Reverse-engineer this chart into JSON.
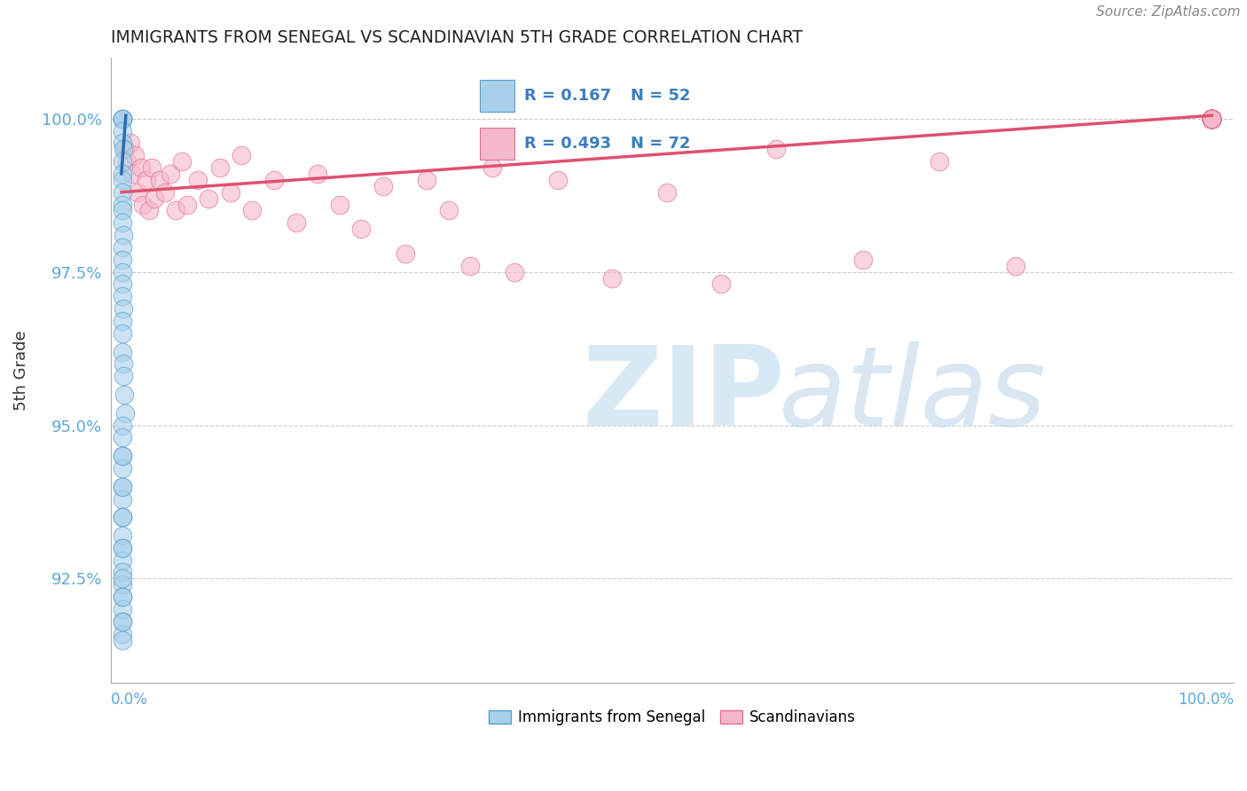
{
  "title": "IMMIGRANTS FROM SENEGAL VS SCANDINAVIAN 5TH GRADE CORRELATION CHART",
  "source": "Source: ZipAtlas.com",
  "ylabel": "5th Grade",
  "ylim": [
    90.8,
    101.0
  ],
  "xlim": [
    -1.0,
    102.0
  ],
  "yticks": [
    92.5,
    95.0,
    97.5,
    100.0
  ],
  "ytick_labels": [
    "92.5%",
    "95.0%",
    "97.5%",
    "100.0%"
  ],
  "blue_color": "#a8d0ea",
  "pink_color": "#f5b8c8",
  "blue_edge_color": "#5b9dc8",
  "pink_edge_color": "#e07090",
  "blue_line_color": "#2b6cb0",
  "pink_line_color": "#e05070",
  "blue_scatter_x": [
    0.05,
    0.08,
    0.1,
    0.12,
    0.05,
    0.08,
    0.15,
    0.1,
    0.08,
    0.12,
    0.05,
    0.08,
    0.1,
    0.12,
    0.15,
    0.08,
    0.05,
    0.1,
    0.08,
    0.12,
    0.15,
    0.08,
    0.05,
    0.1,
    0.15,
    0.2,
    0.25,
    0.3,
    0.08,
    0.12,
    0.08,
    0.05,
    0.1,
    0.08,
    0.12,
    0.08,
    0.05,
    0.1,
    0.08,
    0.12,
    0.05,
    0.08,
    0.1,
    0.12,
    0.05,
    0.08,
    0.1,
    0.08,
    0.1,
    0.05,
    0.08,
    0.1
  ],
  "blue_scatter_y": [
    100.0,
    100.0,
    100.0,
    100.0,
    99.8,
    99.6,
    99.5,
    99.3,
    99.1,
    99.0,
    98.8,
    98.6,
    98.5,
    98.3,
    98.1,
    97.9,
    97.7,
    97.5,
    97.3,
    97.1,
    96.9,
    96.7,
    96.5,
    96.2,
    96.0,
    95.8,
    95.5,
    95.2,
    95.0,
    94.8,
    94.5,
    94.3,
    94.0,
    93.8,
    93.5,
    93.2,
    93.0,
    92.8,
    92.6,
    92.4,
    92.2,
    92.0,
    91.8,
    91.6,
    91.5,
    91.8,
    92.2,
    92.5,
    93.0,
    93.5,
    94.0,
    94.5
  ],
  "pink_scatter_x": [
    0.3,
    0.5,
    0.8,
    1.0,
    1.2,
    1.5,
    1.8,
    2.0,
    2.3,
    2.5,
    2.8,
    3.0,
    3.5,
    4.0,
    4.5,
    5.0,
    5.5,
    6.0,
    7.0,
    8.0,
    9.0,
    10.0,
    11.0,
    12.0,
    14.0,
    16.0,
    18.0,
    20.0,
    22.0,
    24.0,
    26.0,
    28.0,
    30.0,
    32.0,
    34.0,
    36.0,
    40.0,
    45.0,
    50.0,
    55.0,
    60.0,
    68.0,
    75.0,
    82.0,
    100.0,
    100.0,
    100.0,
    100.0,
    100.0,
    100.0,
    100.0,
    100.0,
    100.0,
    100.0,
    100.0,
    100.0,
    100.0,
    100.0,
    100.0,
    100.0,
    100.0,
    100.0,
    100.0,
    100.0,
    100.0,
    100.0,
    100.0,
    100.0,
    100.0,
    100.0,
    100.0,
    100.0
  ],
  "pink_scatter_y": [
    99.5,
    99.3,
    99.6,
    99.1,
    99.4,
    98.8,
    99.2,
    98.6,
    99.0,
    98.5,
    99.2,
    98.7,
    99.0,
    98.8,
    99.1,
    98.5,
    99.3,
    98.6,
    99.0,
    98.7,
    99.2,
    98.8,
    99.4,
    98.5,
    99.0,
    98.3,
    99.1,
    98.6,
    98.2,
    98.9,
    97.8,
    99.0,
    98.5,
    97.6,
    99.2,
    97.5,
    99.0,
    97.4,
    98.8,
    97.3,
    99.5,
    97.7,
    99.3,
    97.6,
    100.0,
    100.0,
    100.0,
    100.0,
    100.0,
    100.0,
    100.0,
    100.0,
    100.0,
    100.0,
    100.0,
    100.0,
    100.0,
    100.0,
    100.0,
    100.0,
    100.0,
    100.0,
    100.0,
    100.0,
    100.0,
    100.0,
    100.0,
    100.0,
    100.0,
    100.0,
    100.0,
    100.0
  ],
  "blue_trendline_x": [
    0.0,
    0.4
  ],
  "blue_trendline_y": [
    99.1,
    100.05
  ],
  "pink_trendline_x": [
    0.0,
    100.0
  ],
  "pink_trendline_y": [
    98.8,
    100.05
  ],
  "background_color": "#ffffff",
  "grid_color": "#cccccc",
  "watermark_zip_color": "#cde4f3",
  "watermark_atlas_color": "#c0d8ec",
  "legend_r_blue": "R = 0.167",
  "legend_n_blue": "N = 52",
  "legend_r_pink": "R = 0.493",
  "legend_n_pink": "N = 72",
  "text_color_blue": "#3b7ec0",
  "ytick_color": "#5ba8d8"
}
